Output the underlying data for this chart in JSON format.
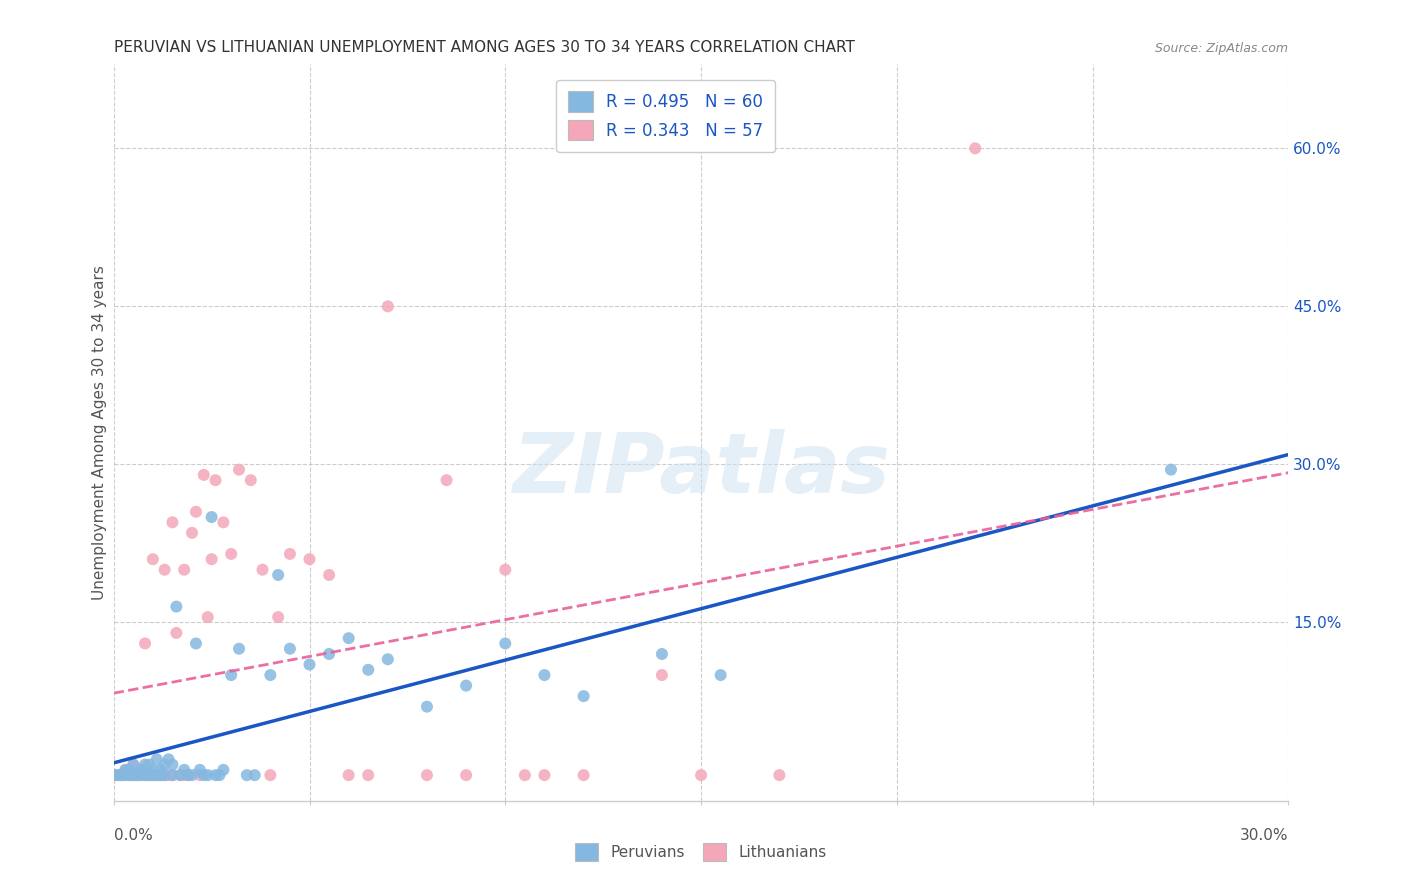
{
  "title": "PERUVIAN VS LITHUANIAN UNEMPLOYMENT AMONG AGES 30 TO 34 YEARS CORRELATION CHART",
  "source": "Source: ZipAtlas.com",
  "ylabel": "Unemployment Among Ages 30 to 34 years",
  "ytick_labels": [
    "60.0%",
    "45.0%",
    "30.0%",
    "15.0%"
  ],
  "ytick_values": [
    0.6,
    0.45,
    0.3,
    0.15
  ],
  "xlim": [
    0.0,
    0.3
  ],
  "ylim": [
    -0.02,
    0.68
  ],
  "peruvian_color": "#85b8e0",
  "lithuanian_color": "#f4a7b9",
  "peruvian_line_color": "#1a56c4",
  "lithuanian_line_color": "#e8609a",
  "peruvian_R": 0.495,
  "peruvian_N": 60,
  "lithuanian_R": 0.343,
  "lithuanian_N": 57,
  "watermark": "ZIPatlas",
  "legend_R_color": "#1a56c4",
  "legend_N_color": "#e8609a",
  "peruvian_scatter_x": [
    0.0,
    0.001,
    0.002,
    0.003,
    0.003,
    0.004,
    0.004,
    0.005,
    0.005,
    0.006,
    0.007,
    0.007,
    0.008,
    0.008,
    0.009,
    0.009,
    0.01,
    0.01,
    0.011,
    0.011,
    0.012,
    0.012,
    0.013,
    0.013,
    0.014,
    0.015,
    0.015,
    0.016,
    0.017,
    0.018,
    0.019,
    0.02,
    0.021,
    0.022,
    0.023,
    0.024,
    0.025,
    0.026,
    0.027,
    0.028,
    0.03,
    0.032,
    0.034,
    0.036,
    0.04,
    0.042,
    0.045,
    0.05,
    0.055,
    0.06,
    0.065,
    0.07,
    0.08,
    0.09,
    0.1,
    0.11,
    0.12,
    0.14,
    0.155,
    0.27
  ],
  "peruvian_scatter_y": [
    0.005,
    0.005,
    0.005,
    0.005,
    0.01,
    0.005,
    0.01,
    0.005,
    0.015,
    0.005,
    0.005,
    0.01,
    0.005,
    0.015,
    0.005,
    0.015,
    0.005,
    0.01,
    0.005,
    0.02,
    0.005,
    0.01,
    0.005,
    0.015,
    0.02,
    0.005,
    0.015,
    0.165,
    0.005,
    0.01,
    0.005,
    0.005,
    0.13,
    0.01,
    0.005,
    0.005,
    0.25,
    0.005,
    0.005,
    0.01,
    0.1,
    0.125,
    0.005,
    0.005,
    0.1,
    0.195,
    0.125,
    0.11,
    0.12,
    0.135,
    0.105,
    0.115,
    0.07,
    0.09,
    0.13,
    0.1,
    0.08,
    0.12,
    0.1,
    0.295
  ],
  "lithuanian_scatter_x": [
    0.0,
    0.001,
    0.002,
    0.003,
    0.004,
    0.005,
    0.005,
    0.006,
    0.007,
    0.008,
    0.008,
    0.009,
    0.01,
    0.01,
    0.011,
    0.012,
    0.013,
    0.013,
    0.014,
    0.015,
    0.015,
    0.016,
    0.017,
    0.018,
    0.018,
    0.019,
    0.02,
    0.021,
    0.022,
    0.023,
    0.024,
    0.025,
    0.026,
    0.028,
    0.03,
    0.032,
    0.035,
    0.038,
    0.04,
    0.042,
    0.045,
    0.05,
    0.055,
    0.06,
    0.065,
    0.07,
    0.08,
    0.085,
    0.09,
    0.1,
    0.105,
    0.11,
    0.12,
    0.14,
    0.15,
    0.17,
    0.22
  ],
  "lithuanian_scatter_y": [
    0.005,
    0.005,
    0.005,
    0.01,
    0.005,
    0.005,
    0.015,
    0.005,
    0.01,
    0.005,
    0.13,
    0.005,
    0.005,
    0.21,
    0.005,
    0.005,
    0.005,
    0.2,
    0.005,
    0.005,
    0.245,
    0.14,
    0.005,
    0.005,
    0.2,
    0.005,
    0.235,
    0.255,
    0.005,
    0.29,
    0.155,
    0.21,
    0.285,
    0.245,
    0.215,
    0.295,
    0.285,
    0.2,
    0.005,
    0.155,
    0.215,
    0.21,
    0.195,
    0.005,
    0.005,
    0.45,
    0.005,
    0.285,
    0.005,
    0.2,
    0.005,
    0.005,
    0.005,
    0.1,
    0.005,
    0.005,
    0.6
  ]
}
